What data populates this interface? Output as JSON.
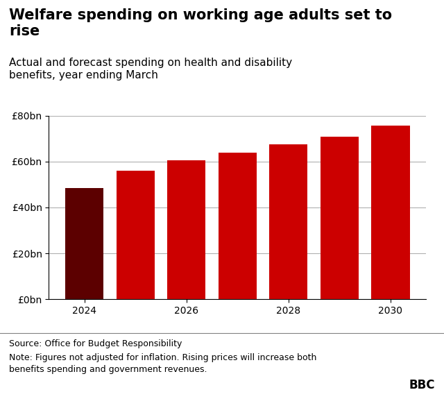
{
  "chart_data": {
    "type": "bar",
    "title": "Welfare spending on working age adults set to\nrise",
    "subtitle": "Actual and forecast spending on health and disability\nbenefits, year ending March",
    "x": [
      2024,
      2025,
      2026,
      2027,
      2028,
      2029,
      2030
    ],
    "values": [
      48.5,
      56.0,
      60.5,
      64.0,
      67.5,
      71.0,
      75.7
    ],
    "colors": [
      "#5c0000",
      "#cc0000",
      "#cc0000",
      "#cc0000",
      "#cc0000",
      "#cc0000",
      "#cc0000"
    ],
    "xlim": [
      2023.3,
      2030.7
    ],
    "xticks": [
      2024,
      2026,
      2028,
      2030
    ],
    "ylim": [
      0,
      80
    ],
    "yticks": [
      {
        "value": 0,
        "label": "£0bn"
      },
      {
        "value": 20,
        "label": "£20bn"
      },
      {
        "value": 40,
        "label": "£40bn"
      },
      {
        "value": 60,
        "label": "£60bn"
      },
      {
        "value": 80,
        "label": "£80bn"
      }
    ],
    "grid": true,
    "annotations": [
      "Source: Office for Budget Responsibility",
      "Note: Figures not adjusted for inflation. Rising prices will increase both\nbenefits spending and government revenues.",
      "BBC"
    ]
  }
}
